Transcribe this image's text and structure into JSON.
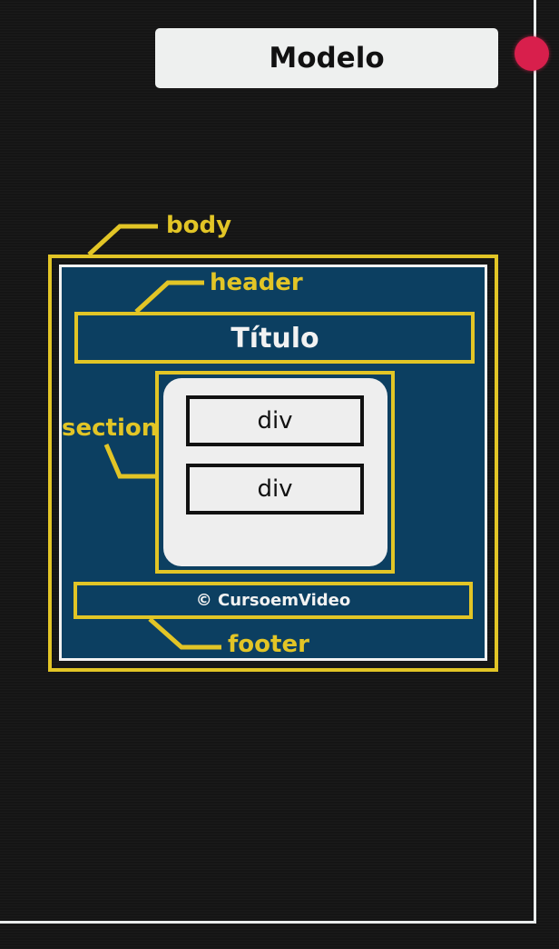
{
  "title": "Modelo",
  "labels": {
    "body": "body",
    "header": "header",
    "section": "section",
    "footer": "footer"
  },
  "content": {
    "heading": "Título",
    "div1": "div",
    "div2": "div",
    "footer_text": "© CursoemVideo"
  },
  "colors": {
    "background": "#151515",
    "label_yellow": "#e2c526",
    "page_blue": "#0c3f61",
    "record_dot": "#d81f4c"
  }
}
